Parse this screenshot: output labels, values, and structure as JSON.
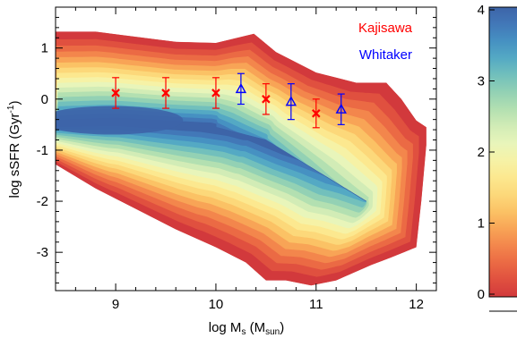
{
  "chart_data": {
    "type": "contour",
    "xlabel": {
      "base": "log M",
      "sub": "s",
      "open": " (M",
      "sub2": "sun",
      "close": ")"
    },
    "ylabel": {
      "base": "log sSFR (Gyr",
      "sup": "-1",
      "close": ")"
    },
    "xlim": [
      8.4,
      12.2
    ],
    "ylim": [
      -3.75,
      1.8
    ],
    "xticks": [
      9,
      10,
      11,
      12
    ],
    "xtick_labels": [
      "9",
      "10",
      "11",
      "12"
    ],
    "yticks": [
      1,
      0,
      -1,
      -2,
      -3
    ],
    "ytick_labels": [
      "1",
      "0",
      "-1",
      "-2",
      "-3"
    ],
    "density_contours": {
      "outer_upper": [
        [
          8.4,
          1.32
        ],
        [
          8.8,
          1.32
        ],
        [
          9.2,
          1.22
        ],
        [
          9.6,
          1.12
        ],
        [
          10.0,
          1.1
        ],
        [
          10.38,
          1.28
        ],
        [
          10.6,
          0.92
        ],
        [
          11.0,
          0.52
        ],
        [
          11.4,
          0.32
        ],
        [
          11.7,
          0.32
        ],
        [
          11.85,
          0.0
        ],
        [
          12.0,
          -0.42
        ],
        [
          12.1,
          -0.55
        ]
      ],
      "outer_lower": [
        [
          8.4,
          -1.28
        ],
        [
          8.8,
          -1.75
        ],
        [
          9.2,
          -2.15
        ],
        [
          9.6,
          -2.55
        ],
        [
          10.0,
          -2.9
        ],
        [
          10.3,
          -3.2
        ],
        [
          10.5,
          -3.55
        ],
        [
          10.7,
          -3.55
        ],
        [
          10.95,
          -3.65
        ],
        [
          11.2,
          -3.55
        ],
        [
          11.55,
          -3.25
        ],
        [
          11.75,
          -3.1
        ],
        [
          12.0,
          -2.9
        ],
        [
          12.05,
          -2.0
        ],
        [
          12.1,
          -0.9
        ]
      ],
      "core_center": {
        "x": 8.6,
        "y": -0.45
      },
      "peak_ridge": [
        [
          8.4,
          -0.5
        ],
        [
          9.0,
          -0.45
        ],
        [
          9.5,
          -0.5
        ],
        [
          10.0,
          -0.55
        ],
        [
          10.5,
          -0.8
        ],
        [
          11.0,
          -1.4
        ],
        [
          11.5,
          -2.0
        ]
      ]
    },
    "series": [
      {
        "name": "Kajisawa",
        "color": "#ff0000",
        "marker": "x",
        "x": [
          9.0,
          9.5,
          10.0,
          10.5,
          11.0
        ],
        "y": [
          0.12,
          0.12,
          0.12,
          0.0,
          -0.28
        ],
        "err": [
          0.3,
          0.3,
          0.3,
          0.3,
          0.28
        ]
      },
      {
        "name": "Whitaker",
        "color": "#0000ff",
        "marker": "triangle",
        "x": [
          10.25,
          10.75,
          11.25
        ],
        "y": [
          0.2,
          -0.05,
          -0.2
        ],
        "err": [
          0.3,
          0.35,
          0.3
        ]
      }
    ],
    "colorbar": {
      "range": [
        0,
        4
      ],
      "ticks": [
        0,
        1,
        2,
        3,
        4
      ],
      "tick_labels": [
        "0",
        "1",
        "2",
        "3",
        "4"
      ],
      "colors": [
        "#d2393c",
        "#e0503f",
        "#eb6a44",
        "#f3864c",
        "#f8a456",
        "#fbc265",
        "#fcd87a",
        "#fce88f",
        "#f6f2a6",
        "#e8f5ba",
        "#d2ecb6",
        "#b3e0b1",
        "#93d1b4",
        "#72c0bc",
        "#54a9c4",
        "#4691c2",
        "#4278b8",
        "#3d64a8"
      ]
    }
  }
}
